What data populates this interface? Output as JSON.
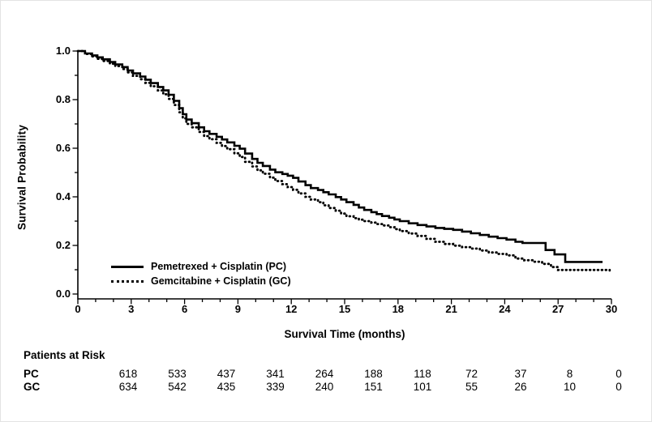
{
  "figure": {
    "background_color": "#ffffff",
    "axis_color": "#000000",
    "curve_color": "#000000"
  },
  "chart_data": {
    "type": "line",
    "subtype": "kaplan-meier-step",
    "title": "",
    "xlabel": "Survival Time (months)",
    "ylabel": "Survival Probability",
    "xlim": [
      0,
      30
    ],
    "ylim": [
      0.0,
      1.0
    ],
    "x_major_ticks": [
      0,
      3,
      6,
      9,
      12,
      15,
      18,
      21,
      24,
      27,
      30
    ],
    "x_minor_tick_interval": 1,
    "y_major_ticks": [
      1.0,
      0.8,
      0.6,
      0.4,
      0.2,
      0.0
    ],
    "y_minor_tick_interval": 0.1,
    "grid": false,
    "legend_position": "lower-left-inside",
    "series": [
      {
        "name": "Pemetrexed + Cisplatin (PC)",
        "abbrev": "PC",
        "style": "solid",
        "color": "#000000",
        "points": [
          [
            0,
            1.0
          ],
          [
            0.4,
            0.99
          ],
          [
            0.8,
            0.982
          ],
          [
            1.1,
            0.974
          ],
          [
            1.4,
            0.966
          ],
          [
            1.8,
            0.955
          ],
          [
            2.1,
            0.945
          ],
          [
            2.5,
            0.934
          ],
          [
            2.8,
            0.92
          ],
          [
            3.1,
            0.908
          ],
          [
            3.5,
            0.895
          ],
          [
            3.8,
            0.882
          ],
          [
            4.1,
            0.868
          ],
          [
            4.5,
            0.852
          ],
          [
            4.8,
            0.838
          ],
          [
            5.1,
            0.82
          ],
          [
            5.4,
            0.795
          ],
          [
            5.7,
            0.765
          ],
          [
            5.9,
            0.74
          ],
          [
            6.1,
            0.718
          ],
          [
            6.4,
            0.703
          ],
          [
            6.8,
            0.686
          ],
          [
            7.1,
            0.67
          ],
          [
            7.4,
            0.659
          ],
          [
            7.8,
            0.647
          ],
          [
            8.1,
            0.636
          ],
          [
            8.4,
            0.624
          ],
          [
            8.8,
            0.61
          ],
          [
            9.1,
            0.598
          ],
          [
            9.4,
            0.578
          ],
          [
            9.8,
            0.556
          ],
          [
            10.1,
            0.54
          ],
          [
            10.4,
            0.527
          ],
          [
            10.8,
            0.512
          ],
          [
            11.1,
            0.501
          ],
          [
            11.5,
            0.494
          ],
          [
            11.8,
            0.487
          ],
          [
            12.1,
            0.478
          ],
          [
            12.4,
            0.463
          ],
          [
            12.8,
            0.448
          ],
          [
            13.1,
            0.436
          ],
          [
            13.5,
            0.428
          ],
          [
            13.8,
            0.419
          ],
          [
            14.1,
            0.41
          ],
          [
            14.5,
            0.399
          ],
          [
            14.8,
            0.389
          ],
          [
            15.1,
            0.378
          ],
          [
            15.5,
            0.367
          ],
          [
            15.8,
            0.356
          ],
          [
            16.1,
            0.346
          ],
          [
            16.5,
            0.337
          ],
          [
            16.8,
            0.329
          ],
          [
            17.1,
            0.321
          ],
          [
            17.5,
            0.314
          ],
          [
            17.8,
            0.307
          ],
          [
            18.1,
            0.3
          ],
          [
            18.6,
            0.291
          ],
          [
            19.1,
            0.284
          ],
          [
            19.6,
            0.278
          ],
          [
            20.1,
            0.272
          ],
          [
            20.6,
            0.268
          ],
          [
            21.1,
            0.264
          ],
          [
            21.6,
            0.257
          ],
          [
            22.1,
            0.25
          ],
          [
            22.6,
            0.243
          ],
          [
            23.1,
            0.236
          ],
          [
            23.6,
            0.23
          ],
          [
            24.1,
            0.224
          ],
          [
            24.6,
            0.215
          ],
          [
            25.0,
            0.21
          ],
          [
            26.3,
            0.181
          ],
          [
            26.8,
            0.163
          ],
          [
            27.4,
            0.132
          ],
          [
            29.5,
            0.132
          ]
        ]
      },
      {
        "name": "Gemcitabine + Cisplatin (GC)",
        "abbrev": "GC",
        "style": "dotted",
        "color": "#000000",
        "points": [
          [
            0,
            1.0
          ],
          [
            0.4,
            0.988
          ],
          [
            0.8,
            0.978
          ],
          [
            1.1,
            0.968
          ],
          [
            1.4,
            0.959
          ],
          [
            1.8,
            0.948
          ],
          [
            2.1,
            0.938
          ],
          [
            2.5,
            0.926
          ],
          [
            2.8,
            0.912
          ],
          [
            3.1,
            0.898
          ],
          [
            3.5,
            0.884
          ],
          [
            3.8,
            0.869
          ],
          [
            4.1,
            0.855
          ],
          [
            4.5,
            0.838
          ],
          [
            4.8,
            0.822
          ],
          [
            5.1,
            0.803
          ],
          [
            5.4,
            0.778
          ],
          [
            5.7,
            0.748
          ],
          [
            5.9,
            0.723
          ],
          [
            6.1,
            0.7
          ],
          [
            6.4,
            0.686
          ],
          [
            6.8,
            0.667
          ],
          [
            7.1,
            0.65
          ],
          [
            7.4,
            0.637
          ],
          [
            7.8,
            0.622
          ],
          [
            8.1,
            0.609
          ],
          [
            8.4,
            0.596
          ],
          [
            8.8,
            0.579
          ],
          [
            9.1,
            0.564
          ],
          [
            9.4,
            0.544
          ],
          [
            9.8,
            0.525
          ],
          [
            10.1,
            0.509
          ],
          [
            10.4,
            0.495
          ],
          [
            10.8,
            0.479
          ],
          [
            11.1,
            0.465
          ],
          [
            11.5,
            0.452
          ],
          [
            11.8,
            0.44
          ],
          [
            12.1,
            0.429
          ],
          [
            12.4,
            0.414
          ],
          [
            12.8,
            0.4
          ],
          [
            13.1,
            0.389
          ],
          [
            13.5,
            0.378
          ],
          [
            13.8,
            0.365
          ],
          [
            14.1,
            0.354
          ],
          [
            14.5,
            0.343
          ],
          [
            14.8,
            0.331
          ],
          [
            15.1,
            0.32
          ],
          [
            15.5,
            0.312
          ],
          [
            15.8,
            0.306
          ],
          [
            16.1,
            0.3
          ],
          [
            16.5,
            0.294
          ],
          [
            16.8,
            0.288
          ],
          [
            17.1,
            0.282
          ],
          [
            17.5,
            0.275
          ],
          [
            17.8,
            0.267
          ],
          [
            18.1,
            0.259
          ],
          [
            18.6,
            0.249
          ],
          [
            19.1,
            0.239
          ],
          [
            19.6,
            0.227
          ],
          [
            20.1,
            0.215
          ],
          [
            20.6,
            0.206
          ],
          [
            21.1,
            0.199
          ],
          [
            21.6,
            0.193
          ],
          [
            22.1,
            0.187
          ],
          [
            22.6,
            0.179
          ],
          [
            23.1,
            0.171
          ],
          [
            23.6,
            0.165
          ],
          [
            24.1,
            0.159
          ],
          [
            24.6,
            0.146
          ],
          [
            25.1,
            0.139
          ],
          [
            25.6,
            0.133
          ],
          [
            26.1,
            0.124
          ],
          [
            26.6,
            0.111
          ],
          [
            27.0,
            0.099
          ],
          [
            29.9,
            0.097
          ]
        ]
      }
    ]
  },
  "risk_table": {
    "title": "Patients at Risk",
    "time_points": [
      0,
      3,
      6,
      9,
      12,
      15,
      18,
      21,
      24,
      27,
      30
    ],
    "rows": [
      {
        "label": "PC",
        "counts": [
          618,
          533,
          437,
          341,
          264,
          188,
          118,
          72,
          37,
          8,
          0
        ]
      },
      {
        "label": "GC",
        "counts": [
          634,
          542,
          435,
          339,
          240,
          151,
          101,
          55,
          26,
          10,
          0
        ]
      }
    ]
  }
}
